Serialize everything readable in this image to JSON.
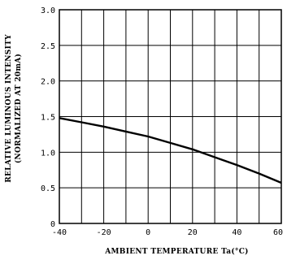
{
  "chart_data": {
    "type": "line",
    "xlabel": "AMBIENT TEMPERATURE Ta(°C)",
    "ylabel_lines": [
      "RELATIVE LUMINOUS INTENSITY",
      "(NORMALIZED AT 20mA)"
    ],
    "xlim": [
      -40,
      60
    ],
    "ylim": [
      0,
      3.0
    ],
    "x_ticks": [
      "-40",
      "-20",
      "0",
      "20",
      "40",
      "60"
    ],
    "x_tick_values": [
      -40,
      -20,
      0,
      20,
      40,
      60
    ],
    "y_ticks": [
      "0",
      "0.5",
      "1.0",
      "1.5",
      "2.0",
      "2.5",
      "3.0"
    ],
    "y_tick_values": [
      0,
      0.5,
      1.0,
      1.5,
      2.0,
      2.5,
      3.0
    ],
    "grid": true,
    "series": [
      {
        "x": [
          -40,
          -30,
          -20,
          -10,
          0,
          10,
          20,
          30,
          40,
          50,
          60
        ],
        "y": [
          1.48,
          1.42,
          1.36,
          1.29,
          1.22,
          1.13,
          1.04,
          0.93,
          0.82,
          0.7,
          0.57
        ]
      }
    ]
  }
}
